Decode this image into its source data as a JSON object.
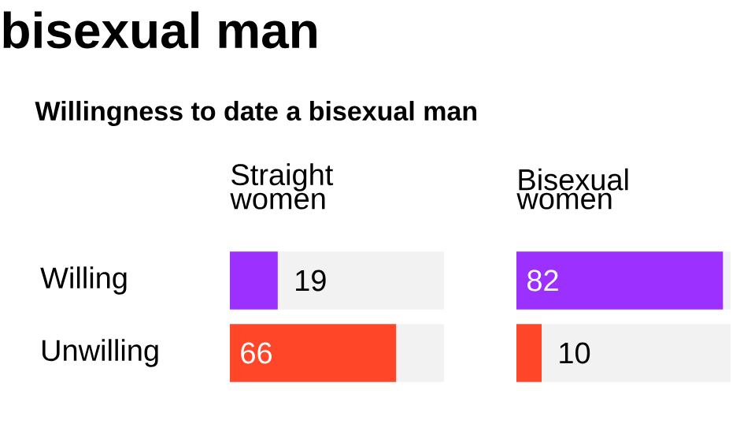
{
  "chart_data": [
    {
      "type": "bar",
      "orientation": "horizontal",
      "title": "bisexual man",
      "subtitle": "Willingness to date a bisexual man",
      "categories": [
        "Willing",
        "Unwilling"
      ],
      "series": [
        {
          "name": "Straight women",
          "colors": [
            "#9b30ff",
            "#ff4628"
          ],
          "values": [
            19,
            66
          ]
        }
      ],
      "xlim": [
        0,
        85
      ],
      "data_labels": true,
      "tick_labels": "y"
    },
    {
      "type": "bar",
      "orientation": "horizontal",
      "series": [
        {
          "name": "Bisexual women",
          "colors": [
            "#9b30ff",
            "#ff4628"
          ],
          "values": [
            82,
            10
          ]
        }
      ],
      "xlim": [
        0,
        85
      ],
      "data_labels": true,
      "tick_labels": false
    }
  ]
}
